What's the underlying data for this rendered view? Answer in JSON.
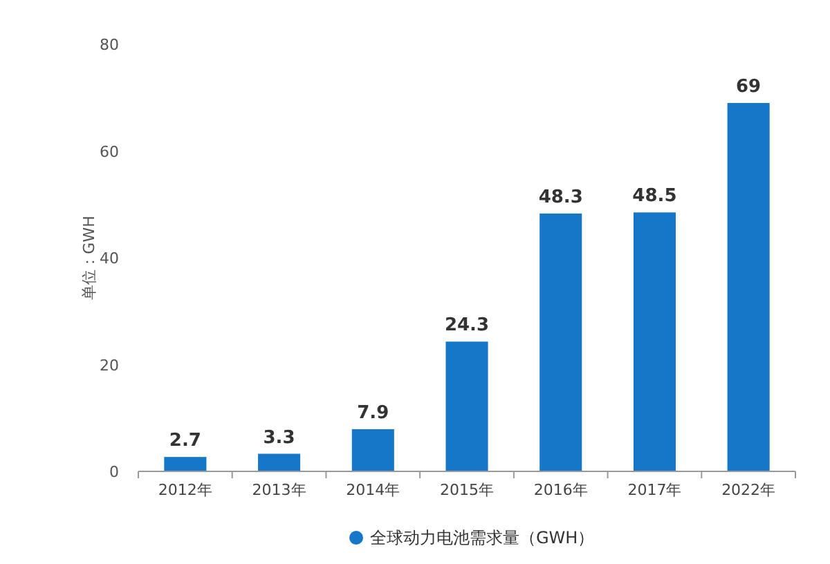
{
  "chart_data": {
    "type": "bar",
    "ylabel": "单位：GWH",
    "categories": [
      "2012年",
      "2013年",
      "2014年",
      "2015年",
      "2016年",
      "2017年",
      "2022年"
    ],
    "series": [
      {
        "name": "全球动力电池需求量（GWH）",
        "color": "#1677c8",
        "values": [
          2.7,
          3.3,
          7.9,
          24.3,
          48.3,
          48.5,
          69
        ]
      }
    ],
    "ylim": [
      0,
      80
    ],
    "yticks": [
      0,
      20,
      40,
      60,
      80
    ],
    "data_labels": true,
    "legend": "bottom"
  }
}
